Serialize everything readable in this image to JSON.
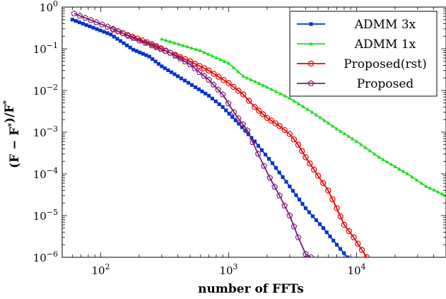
{
  "chart_data": {
    "type": "line",
    "xlabel": "number of FFTs",
    "ylabel": "(F − F*)/F*",
    "x_scale": "log",
    "y_scale": "log",
    "xlim": [
      50,
      50000
    ],
    "ylim": [
      1e-06,
      1
    ],
    "x_ticks": [
      100,
      1000,
      10000
    ],
    "y_ticks": [
      1e-06,
      1e-05,
      0.0001,
      0.001,
      0.01,
      0.1,
      1
    ],
    "legend_position": "top-right",
    "grid": false,
    "series": [
      {
        "name": "ADMM 3x",
        "color": "#0033cc",
        "marker": "square",
        "points": [
          [
            60,
            0.5
          ],
          [
            120,
            0.22
          ],
          [
            180,
            0.095
          ],
          [
            240,
            0.065
          ],
          [
            300,
            0.038
          ],
          [
            400,
            0.022
          ],
          [
            550,
            0.012
          ],
          [
            700,
            0.0075
          ],
          [
            900,
            0.004
          ],
          [
            1200,
            0.0016
          ],
          [
            1600,
            0.0006
          ],
          [
            2200,
            0.00018
          ],
          [
            3000,
            5e-05
          ],
          [
            4000,
            1.5e-05
          ],
          [
            5500,
            5e-06
          ],
          [
            7000,
            2e-06
          ],
          [
            8500,
            1e-06
          ]
        ]
      },
      {
        "name": "ADMM 1x",
        "color": "#22dd22",
        "marker": "triangle",
        "points": [
          [
            300,
            0.17
          ],
          [
            600,
            0.09
          ],
          [
            1000,
            0.045
          ],
          [
            1300,
            0.022
          ],
          [
            2000,
            0.012
          ],
          [
            3000,
            0.0065
          ],
          [
            4500,
            0.003
          ],
          [
            7000,
            0.0012
          ],
          [
            10000,
            0.0006
          ],
          [
            15000,
            0.00025
          ],
          [
            25000,
            0.0001
          ],
          [
            35000,
            5e-05
          ],
          [
            50000,
            3e-05
          ]
        ]
      },
      {
        "name": "Proposed(rst)",
        "color": "#ee0000",
        "marker": "circle",
        "points": [
          [
            125,
            0.29
          ],
          [
            250,
            0.13
          ],
          [
            350,
            0.08
          ],
          [
            500,
            0.05
          ],
          [
            700,
            0.03
          ],
          [
            1000,
            0.015
          ],
          [
            1300,
            0.008
          ],
          [
            1600,
            0.004
          ],
          [
            2000,
            0.0022
          ],
          [
            2500,
            0.0014
          ],
          [
            3000,
            0.0009
          ],
          [
            3500,
            0.0005
          ],
          [
            4000,
            0.00025
          ],
          [
            5000,
            9e-05
          ],
          [
            6000,
            4e-05
          ],
          [
            7000,
            1.5e-05
          ],
          [
            8000,
            6e-06
          ],
          [
            9500,
            3e-06
          ],
          [
            11000,
            1.5e-06
          ],
          [
            12000,
            1e-06
          ]
        ]
      },
      {
        "name": "Proposed",
        "color": "#7a1a7a",
        "marker": "pentagon",
        "points": [
          [
            62,
            0.7
          ],
          [
            125,
            0.3
          ],
          [
            180,
            0.18
          ],
          [
            250,
            0.12
          ],
          [
            350,
            0.08
          ],
          [
            500,
            0.042
          ],
          [
            700,
            0.018
          ],
          [
            900,
            0.008
          ],
          [
            1100,
            0.003
          ],
          [
            1400,
            0.0011
          ],
          [
            1700,
            0.0003
          ],
          [
            2100,
            8e-05
          ],
          [
            2500,
            3e-05
          ],
          [
            3000,
            1e-05
          ],
          [
            3500,
            3e-06
          ],
          [
            4000,
            1.2e-06
          ],
          [
            4400,
            1e-06
          ]
        ]
      }
    ]
  }
}
